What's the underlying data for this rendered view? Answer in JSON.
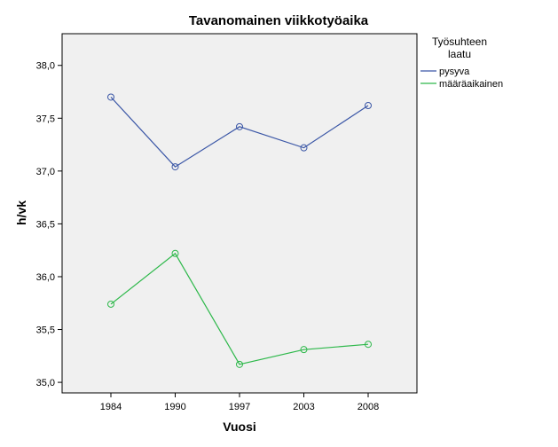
{
  "chart_data": {
    "type": "line",
    "title": "Tavanomainen viikkotyöaika",
    "xlabel": "Vuosi",
    "ylabel": "h/vk",
    "categories": [
      "1984",
      "1990",
      "1997",
      "2003",
      "2008"
    ],
    "ylim": [
      34.9,
      38.3
    ],
    "yticks": [
      "35,0",
      "35,5",
      "36,0",
      "36,5",
      "37,0",
      "37,5",
      "38,0"
    ],
    "legend_title": "Työsuhteen laatu",
    "legend_position": "right",
    "grid": false,
    "plot_background": "#f0f0f0",
    "series": [
      {
        "name": "pysyva",
        "color": "#3a56a6",
        "values": [
          37.7,
          37.04,
          37.42,
          37.22,
          37.62
        ]
      },
      {
        "name": "määräaikainen",
        "color": "#2db84a",
        "values": [
          35.74,
          36.22,
          35.17,
          35.31,
          35.36
        ]
      }
    ]
  }
}
